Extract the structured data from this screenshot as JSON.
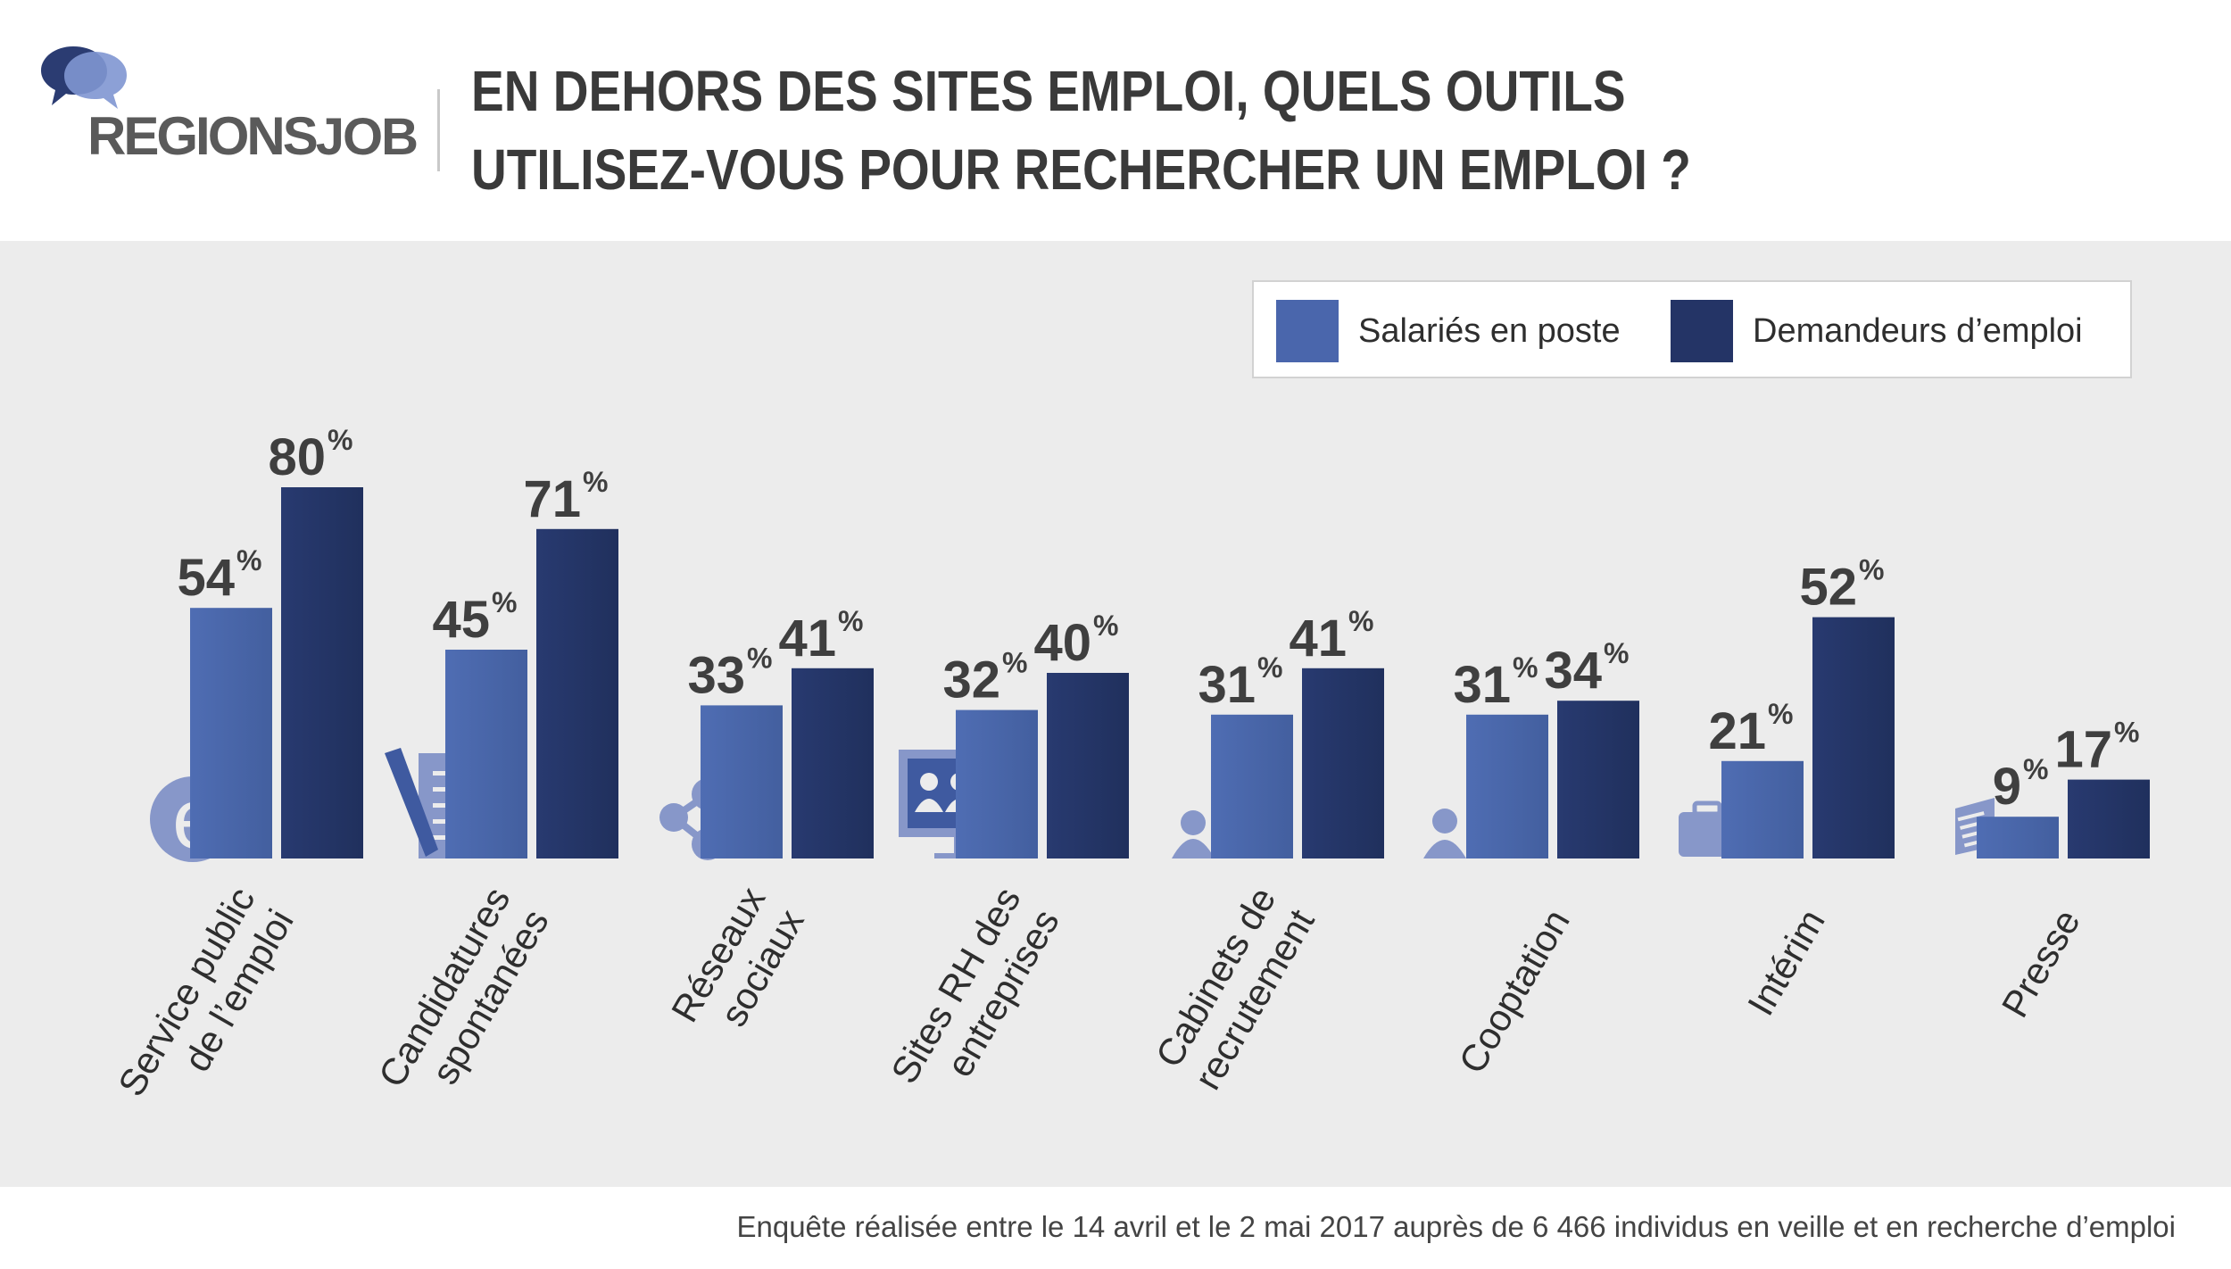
{
  "header": {
    "logo": {
      "text_a": "REGIONS",
      "text_b": "JOB"
    },
    "title_lines": [
      "EN DEHORS DES SITES EMPLOI, QUELS OUTILS",
      "UTILISEZ-VOUS POUR RECHERCHER UN EMPLOI ?"
    ]
  },
  "legend": {
    "items": [
      {
        "label": "Salariés en poste",
        "color": "#4a66ac"
      },
      {
        "label": "Demandeurs d’emploi",
        "color": "#243466"
      }
    ]
  },
  "chart_data": {
    "type": "bar",
    "title": "EN DEHORS DES SITES EMPLOI, QUELS OUTILS UTILISEZ-VOUS POUR RECHERCHER UN EMPLOI ?",
    "categories": [
      [
        "Service public",
        "de l’emploi"
      ],
      [
        "Candidatures",
        "spontanées"
      ],
      [
        "Réseaux",
        "sociaux"
      ],
      [
        "Sites RH des",
        "entreprises"
      ],
      [
        "Cabinets de",
        "recrutement"
      ],
      [
        "Cooptation"
      ],
      [
        "Intérim"
      ],
      [
        "Presse"
      ]
    ],
    "series": [
      {
        "name": "Salariés en poste",
        "color": "#4a66ac",
        "values": [
          54,
          45,
          33,
          32,
          31,
          31,
          21,
          9
        ]
      },
      {
        "name": "Demandeurs d’emploi",
        "color": "#243466",
        "values": [
          80,
          71,
          41,
          40,
          41,
          34,
          52,
          17
        ]
      }
    ],
    "unit": "%",
    "ylim": [
      0,
      100
    ],
    "grid": false,
    "legend_position": "top-right",
    "icons": [
      "e-service-icon",
      "document-pen-icon",
      "share-network-icon",
      "monitor-people-icon",
      "door-person-icon",
      "referral-people-icon",
      "briefcase-person-icon",
      "newspaper-icon"
    ],
    "icon_color": "#8797c9"
  },
  "footnote": "Enquête réalisée entre le 14 avril et le 2 mai 2017 auprès de 6 466 individus en veille et en recherche d’emploi"
}
